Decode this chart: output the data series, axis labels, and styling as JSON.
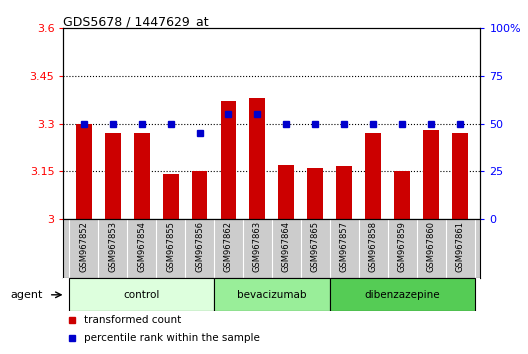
{
  "title": "GDS5678 / 1447629_at",
  "samples": [
    "GSM967852",
    "GSM967853",
    "GSM967854",
    "GSM967855",
    "GSM967856",
    "GSM967862",
    "GSM967863",
    "GSM967864",
    "GSM967865",
    "GSM967857",
    "GSM967858",
    "GSM967859",
    "GSM967860",
    "GSM967861"
  ],
  "transformed_count": [
    3.3,
    3.27,
    3.27,
    3.14,
    3.15,
    3.37,
    3.38,
    3.17,
    3.16,
    3.165,
    3.27,
    3.15,
    3.28,
    3.27
  ],
  "percentile_rank": [
    50,
    50,
    50,
    50,
    45,
    55,
    55,
    50,
    50,
    50,
    50,
    50,
    50,
    50
  ],
  "groups": [
    {
      "label": "control",
      "start": 0,
      "end": 5,
      "color": "#ddffdd"
    },
    {
      "label": "bevacizumab",
      "start": 5,
      "end": 9,
      "color": "#99ee99"
    },
    {
      "label": "dibenzazepine",
      "start": 9,
      "end": 14,
      "color": "#55cc55"
    }
  ],
  "ylim_left": [
    3.0,
    3.6
  ],
  "ylim_right": [
    0,
    100
  ],
  "yticks_left": [
    3.0,
    3.15,
    3.3,
    3.45,
    3.6
  ],
  "yticks_right": [
    0,
    25,
    50,
    75,
    100
  ],
  "ytick_labels_left": [
    "3",
    "3.15",
    "3.3",
    "3.45",
    "3.6"
  ],
  "ytick_labels_right": [
    "0",
    "25",
    "50",
    "75",
    "100%"
  ],
  "bar_color": "#cc0000",
  "dot_color": "#0000cc",
  "background_plot": "#ffffff",
  "background_samples": "#cccccc",
  "agent_label": "agent",
  "legend_bar": "transformed count",
  "legend_dot": "percentile rank within the sample"
}
